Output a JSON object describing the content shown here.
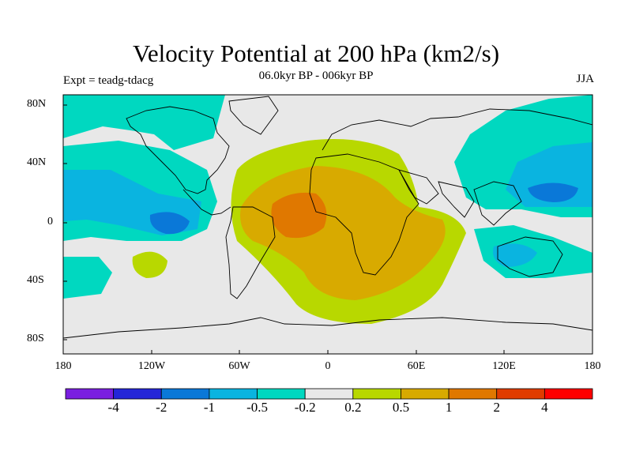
{
  "title": "Velocity Potential at 200 hPa (km2/s)",
  "subtitle": "06.0kyr BP - 006kyr BP",
  "left_label": "Expt = teadg-tdacg",
  "right_label": "JJA",
  "lat_ticks": [
    "80N",
    "40N",
    "0",
    "40S",
    "80S"
  ],
  "lon_ticks": [
    "180",
    "120W",
    "60W",
    "0",
    "60E",
    "120E",
    "180"
  ],
  "colorbar": {
    "colors": [
      "#7a1fe0",
      "#2426d8",
      "#0a78d8",
      "#0ab4e0",
      "#00d8c0",
      "#e8e8e8",
      "#b8d800",
      "#d8aa00",
      "#e07800",
      "#e03c00",
      "#ff0000"
    ],
    "labels": [
      "-4",
      "-2",
      "-1",
      "-0.5",
      "-0.2",
      "0.2",
      "0.5",
      "1",
      "2",
      "4"
    ]
  }
}
